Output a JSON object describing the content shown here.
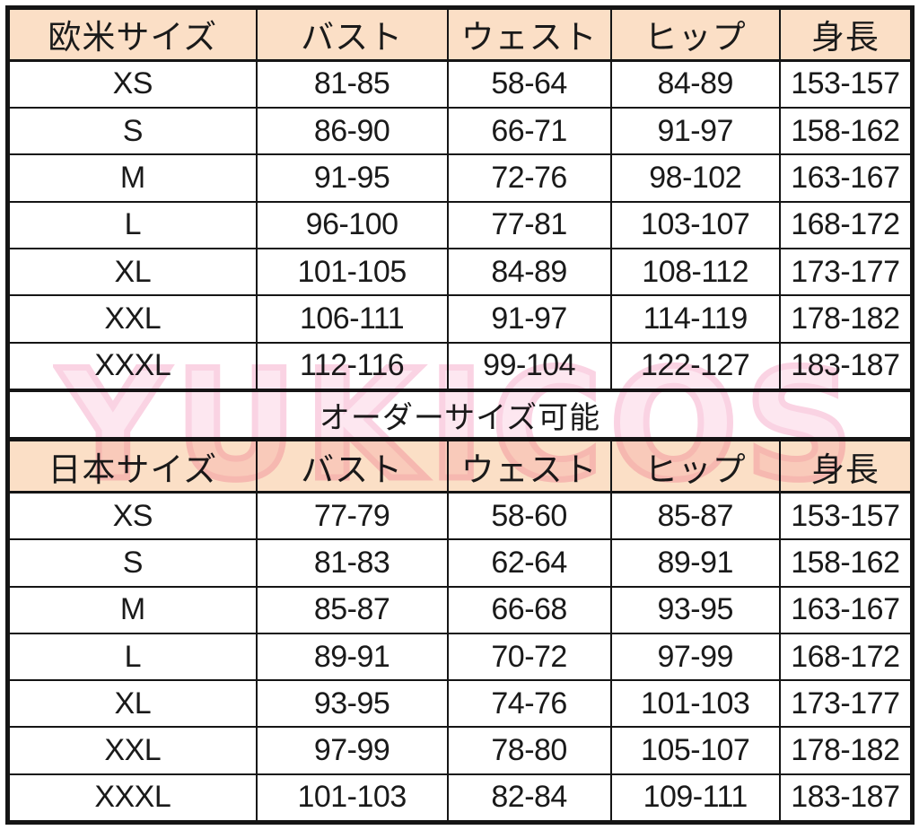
{
  "watermark": {
    "text": "YUKICOS"
  },
  "banner": {
    "text": "オーダーサイズ可能"
  },
  "colors": {
    "header_bg": "#fbdfc6",
    "border": "#151515",
    "watermark_fill": "#fbd3e3",
    "watermark_stroke": "#f6aecb"
  },
  "chart_data": [
    {
      "type": "table",
      "title": "欧米サイズ",
      "columns": [
        "欧米サイズ",
        "バスト",
        "ウェスト",
        "ヒップ",
        "身長"
      ],
      "rows": [
        [
          "XS",
          "81-85",
          "58-64",
          "84-89",
          "153-157"
        ],
        [
          "S",
          "86-90",
          "66-71",
          "91-97",
          "158-162"
        ],
        [
          "M",
          "91-95",
          "72-76",
          "98-102",
          "163-167"
        ],
        [
          "L",
          "96-100",
          "77-81",
          "103-107",
          "168-172"
        ],
        [
          "XL",
          "101-105",
          "84-89",
          "108-112",
          "173-177"
        ],
        [
          "XXL",
          "106-111",
          "91-97",
          "114-119",
          "178-182"
        ],
        [
          "XXXL",
          "112-116",
          "99-104",
          "122-127",
          "183-187"
        ]
      ]
    },
    {
      "type": "table",
      "title": "日本サイズ",
      "columns": [
        "日本サイズ",
        "バスト",
        "ウェスト",
        "ヒップ",
        "身長"
      ],
      "rows": [
        [
          "XS",
          "77-79",
          "58-60",
          "85-87",
          "153-157"
        ],
        [
          "S",
          "81-83",
          "62-64",
          "89-91",
          "158-162"
        ],
        [
          "M",
          "85-87",
          "66-68",
          "93-95",
          "163-167"
        ],
        [
          "L",
          "89-91",
          "70-72",
          "97-99",
          "168-172"
        ],
        [
          "XL",
          "93-95",
          "74-76",
          "101-103",
          "173-177"
        ],
        [
          "XXL",
          "97-99",
          "78-80",
          "105-107",
          "178-182"
        ],
        [
          "XXXL",
          "101-103",
          "82-84",
          "109-111",
          "183-187"
        ]
      ]
    }
  ]
}
